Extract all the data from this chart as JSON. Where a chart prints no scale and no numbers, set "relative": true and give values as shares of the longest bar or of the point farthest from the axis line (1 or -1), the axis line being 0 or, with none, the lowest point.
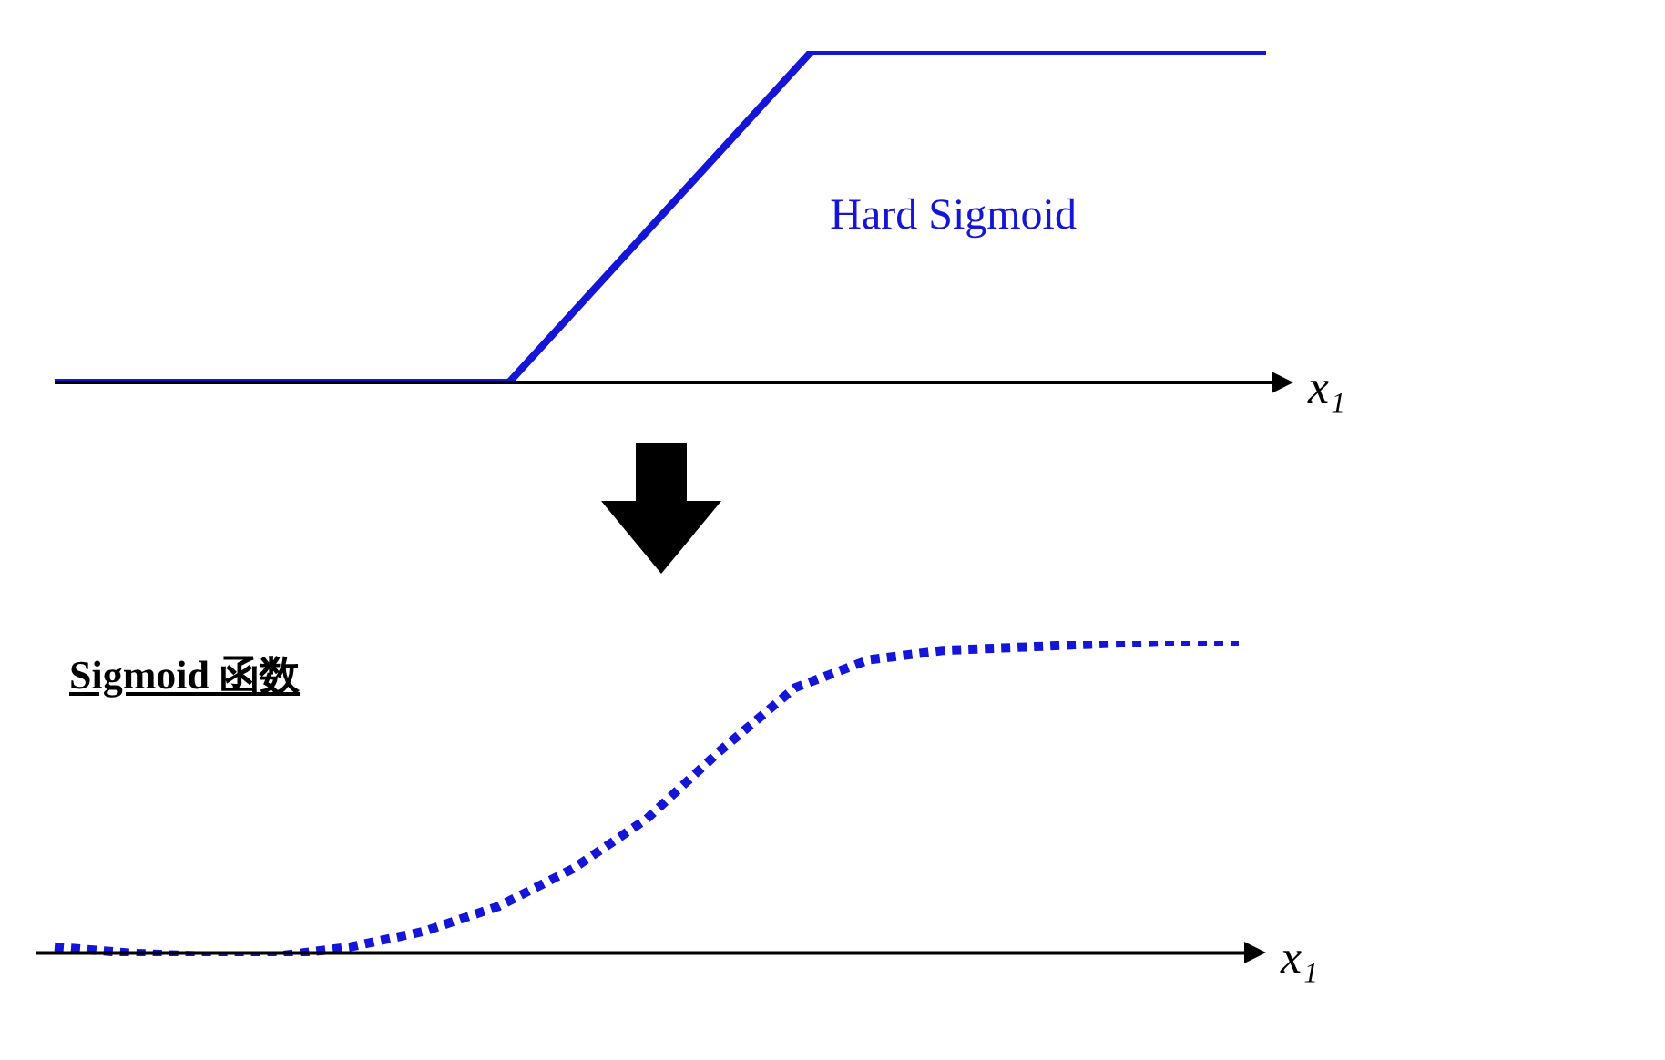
{
  "chart_data": [
    {
      "type": "line",
      "relative": true,
      "xlabel": "x₁",
      "line_style": "solid",
      "legend": false,
      "categories": [
        null,
        null,
        null,
        null,
        null,
        null,
        null,
        null,
        null,
        null,
        null,
        null,
        null,
        null,
        null,
        null,
        null
      ],
      "series": [
        {
          "name": "Hard Sigmoid",
          "color": "#1515d8",
          "values": [
            0,
            0,
            0,
            0,
            0,
            0,
            0,
            0.25,
            0.5,
            0.75,
            1,
            1,
            1,
            1,
            1,
            1,
            1
          ]
        }
      ]
    },
    {
      "type": "line",
      "relative": true,
      "title": "Sigmoid 函数",
      "xlabel": "x₁",
      "line_style": "dotted",
      "legend": false,
      "categories": [
        null,
        null,
        null,
        null,
        null,
        null,
        null,
        null,
        null,
        null,
        null,
        null,
        null,
        null,
        null,
        null,
        null
      ],
      "series": [
        {
          "color": "#1515d8",
          "values": [
            0.02,
            0,
            -0.01,
            -0.01,
            0.02,
            0.07,
            0.15,
            0.27,
            0.43,
            0.65,
            0.85,
            0.94,
            0.97,
            0.98,
            0.99,
            1,
            1
          ]
        }
      ]
    }
  ]
}
